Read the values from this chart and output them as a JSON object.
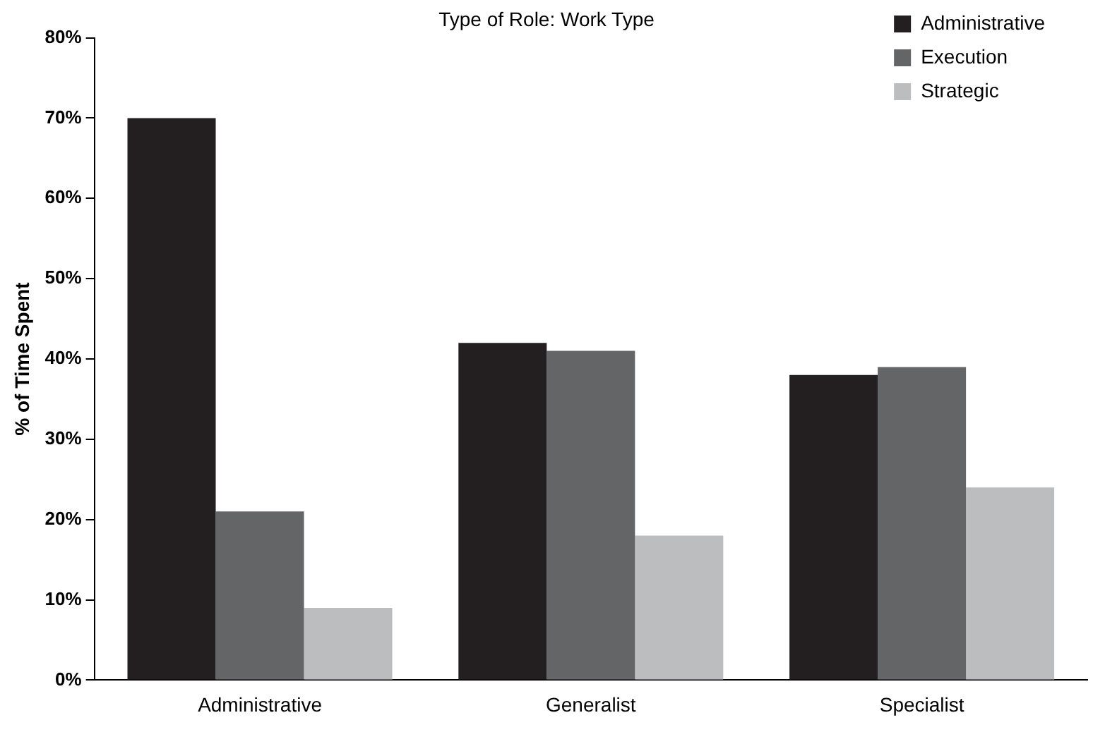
{
  "chart_data": {
    "type": "bar",
    "title": "Type of Role: Work Type",
    "ylabel": "% of Time Spent",
    "categories": [
      "Administrative",
      "Generalist",
      "Specialist"
    ],
    "series": [
      {
        "name": "Administrative",
        "color": "#231f20",
        "values": [
          70,
          42,
          38
        ]
      },
      {
        "name": "Execution",
        "color": "#646567",
        "values": [
          21,
          41,
          39
        ]
      },
      {
        "name": "Strategic",
        "color": "#bcbdbf",
        "values": [
          9,
          18,
          24
        ]
      }
    ],
    "ylim": [
      0,
      80
    ],
    "yticks": [
      {
        "value": 0,
        "label": "0%"
      },
      {
        "value": 10,
        "label": "10%"
      },
      {
        "value": 20,
        "label": "20%"
      },
      {
        "value": 30,
        "label": "30%"
      },
      {
        "value": 40,
        "label": "40%"
      },
      {
        "value": 50,
        "label": "50%"
      },
      {
        "value": 60,
        "label": "60%"
      },
      {
        "value": 70,
        "label": "70%"
      },
      {
        "value": 80,
        "label": "80%"
      }
    ],
    "grid": false,
    "legend": "top right"
  }
}
